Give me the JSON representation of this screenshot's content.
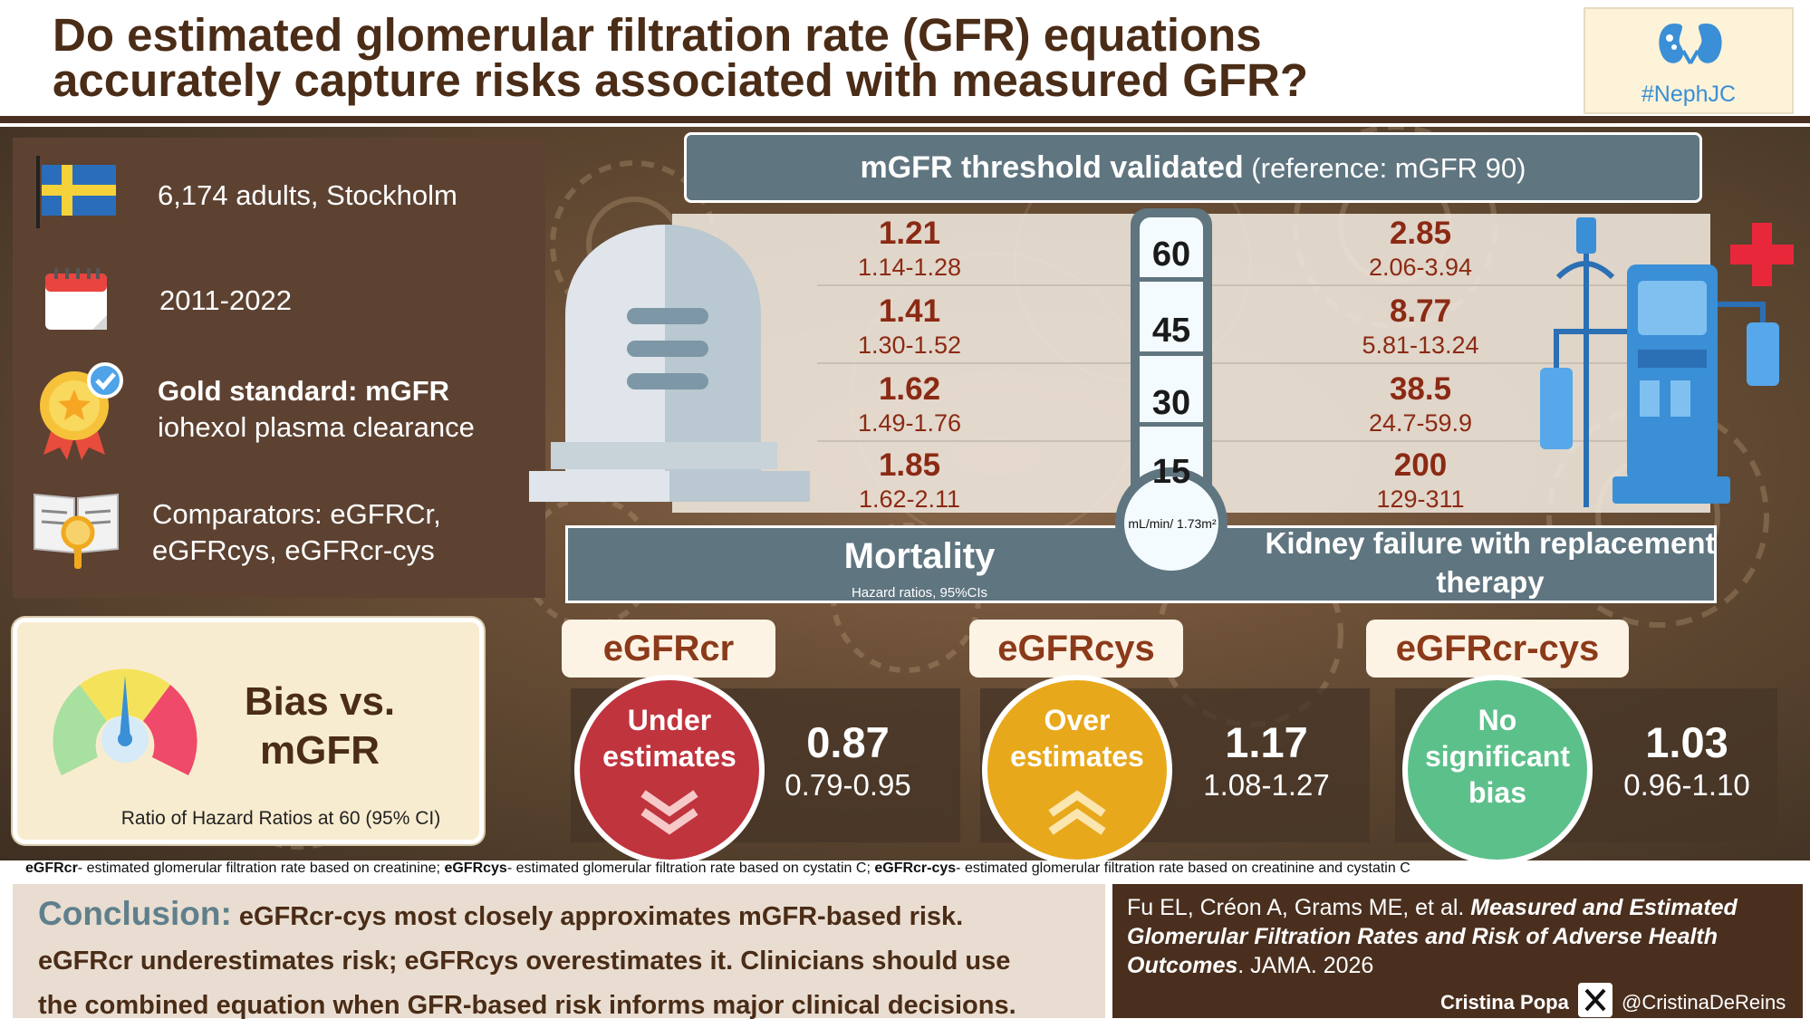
{
  "header": {
    "title_line1": "Do estimated glomerular filtration rate (GFR) equations",
    "title_line2": "accurately capture risks associated with measured GFR?",
    "logo_text": "#NephJC"
  },
  "info": {
    "population": "6,174 adults, Stockholm",
    "period": "2011-2022",
    "gold_bold": "Gold standard: mGFR",
    "gold_rest": "iohexol plasma clearance",
    "comp_line1": "Comparators: eGFRCr,",
    "comp_line2": "eGFRcys, eGFRcr-cys"
  },
  "threshold": {
    "bold": "mGFR threshold validated",
    "ref": " (reference: mGFR 90)"
  },
  "thermometer": {
    "levels": [
      "60",
      "45",
      "30",
      "15"
    ],
    "unit": "mL/min/ 1.73m²"
  },
  "mortality": {
    "label": "Mortality",
    "sub": "Hazard ratios, 95%CIs",
    "rows": [
      {
        "hr": "1.21",
        "ci": "1.14-1.28"
      },
      {
        "hr": "1.41",
        "ci": "1.30-1.52"
      },
      {
        "hr": "1.62",
        "ci": "1.49-1.76"
      },
      {
        "hr": "1.85",
        "ci": "1.62-2.11"
      }
    ]
  },
  "kfrt": {
    "label_line1": "Kidney failure with replacement",
    "label_line2": "therapy",
    "rows": [
      {
        "hr": "2.85",
        "ci": "2.06-3.94"
      },
      {
        "hr": "8.77",
        "ci": "5.81-13.24"
      },
      {
        "hr": "38.5",
        "ci": "24.7-59.9"
      },
      {
        "hr": "200",
        "ci": "129-311"
      }
    ]
  },
  "bias": {
    "title_line1": "Bias vs.",
    "title_line2": "mGFR",
    "subtitle": "Ratio of Hazard Ratios at 60 (95% CI)"
  },
  "equations": [
    {
      "name": "eGFRcr",
      "line1": "Under",
      "line2": "estimates",
      "line3": "",
      "value": "0.87",
      "ci": "0.79-0.95",
      "color": "#c0343e"
    },
    {
      "name": "eGFRcys",
      "line1": "Over",
      "line2": "estimates",
      "line3": "",
      "value": "1.17",
      "ci": "1.08-1.27",
      "color": "#e8a81c"
    },
    {
      "name": "eGFRcr-cys",
      "line1": "No",
      "line2": "significant",
      "line3": "bias",
      "value": "1.03",
      "ci": "0.96-1.10",
      "color": "#5cc08a"
    }
  ],
  "footnote": {
    "t1": "eGFRcr",
    "d1": "- estimated glomerular filtration rate based on creatinine; ",
    "t2": "eGFRcys",
    "d2": "- estimated glomerular filtration rate based on cystatin C; ",
    "t3": "eGFRcr-cys",
    "d3": "- estimated glomerular filtration rate based on creatinine and cystatin C"
  },
  "conclusion": {
    "head": "Conclusion:",
    "line1": " eGFRcr-cys most closely approximates mGFR-based risk.",
    "line2": "eGFRcr underestimates risk; eGFRcys overestimates it. Clinicians should use",
    "line3": "the combined equation when GFR-based risk informs major clinical decisions."
  },
  "citation": {
    "authors": "Fu EL, Créon A, Grams ME, et al. ",
    "title": "Measured and Estimated Glomerular Filtration Rates and Risk of Adverse Health Outcomes",
    "journal": ". JAMA. 2026",
    "author_credit": "Cristina Popa",
    "handle": "@CristinaDeReins"
  },
  "colors": {
    "brown_dark": "#4a2c17",
    "slate": "#5f7580",
    "hr_red": "#8b2a14",
    "under_red": "#c0343e",
    "over_yellow": "#e8a81c",
    "nobias_green": "#5cc08a"
  }
}
